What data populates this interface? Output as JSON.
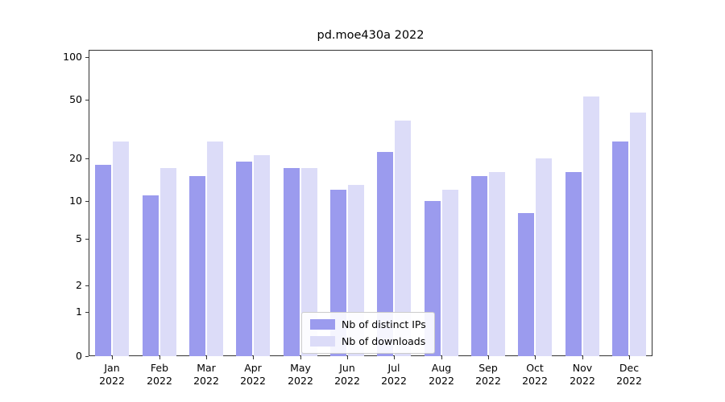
{
  "chart_data": {
    "type": "bar",
    "title": "pd.moe430a 2022",
    "categories": [
      "Jan 2022",
      "Feb 2022",
      "Mar 2022",
      "Apr 2022",
      "May 2022",
      "Jun 2022",
      "Jul 2022",
      "Aug 2022",
      "Sep 2022",
      "Oct 2022",
      "Nov 2022",
      "Dec 2022"
    ],
    "series": [
      {
        "name": "Nb of distinct IPs",
        "color": "#9b9bee",
        "values": [
          18,
          11,
          15,
          19,
          17,
          12,
          22,
          10,
          15,
          8,
          16,
          26
        ]
      },
      {
        "name": "Nb of downloads",
        "color": "#dcdcf8",
        "values": [
          26,
          17,
          26,
          21,
          17,
          13,
          36,
          12,
          16,
          20,
          53,
          41
        ]
      }
    ],
    "yticks": [
      0,
      1,
      2,
      5,
      10,
      20,
      50,
      100
    ],
    "minor_yticks": [
      3,
      4,
      6,
      7,
      8,
      9,
      30,
      40,
      60,
      70,
      80,
      90
    ],
    "yscale": "symlog",
    "ylim": [
      0,
      113
    ],
    "xlabel": "",
    "ylabel": "",
    "grid": "horizontal",
    "legend_position": "lower center"
  }
}
